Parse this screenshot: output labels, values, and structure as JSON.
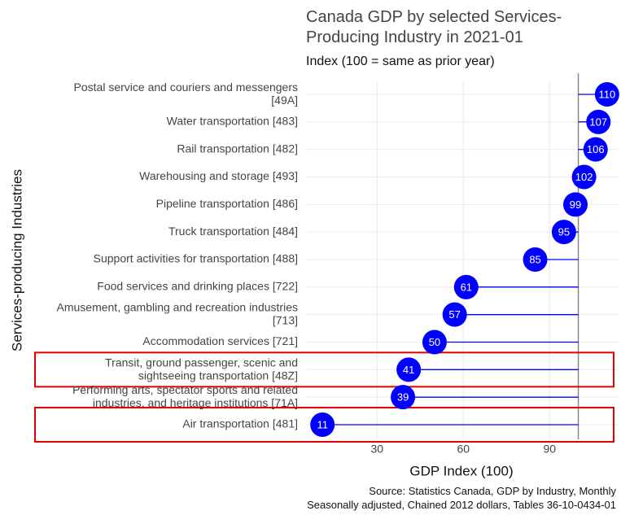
{
  "chart_data": {
    "type": "lollipop",
    "title": "Canada GDP by selected Services-\nProducing Industry in 2021-01",
    "subtitle": "Index (100 = same as prior year)",
    "x_label": "GDP Index (100)",
    "y_label": "Services-producing Industries",
    "caption": "Source: Statistics Canada, GDP by Industry, Monthly\nSeasonally adjusted, Chained 2012 dollars, Tables 36-10-0434-01",
    "categories": [
      "Postal service and couriers and messengers\n[49A]",
      "Water transportation [483]",
      "Rail transportation [482]",
      "Warehousing and storage [493]",
      "Pipeline transportation [486]",
      "Truck transportation [484]",
      "Support activities for transportation [488]",
      "Food services and drinking places [722]",
      "Amusement, gambling and recreation industries\n[713]",
      "Accommodation services [721]",
      "Transit, ground passenger, scenic and\nsightseeing transportation [48Z]",
      "Performing arts, spectator sports and related\nindustries, and heritage institutions [71A]",
      "Air transportation [481]"
    ],
    "values": [
      110,
      107,
      106,
      102,
      99,
      95,
      85,
      61,
      57,
      50,
      41,
      39,
      11
    ],
    "color": "#0000ff",
    "refline": 100,
    "refline_color": "#888888",
    "highlight_color": "#e00000",
    "xlim": [
      5,
      114
    ],
    "xticks": [
      30,
      60,
      90
    ],
    "grid": true
  }
}
